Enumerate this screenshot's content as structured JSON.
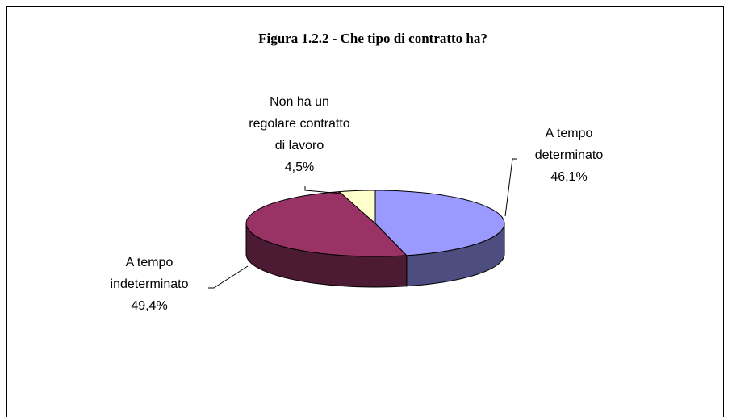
{
  "chart_data": {
    "type": "pie",
    "title": "Figura 1.2.2 - Che tipo di contratto ha?",
    "categories": [
      "A tempo\ndeterminato",
      "A tempo\nindeterminato",
      "Non ha un\nregolare contratto\ndi lavoro"
    ],
    "values": [
      46.1,
      49.4,
      4.5
    ],
    "value_labels": [
      "46,1%",
      "49,4%",
      "4,5%"
    ],
    "colors": [
      "#9999ff",
      "#993366",
      "#ffffcc"
    ],
    "side_colors": [
      "#4d4d80",
      "#4d1a33",
      "#808066"
    ]
  }
}
